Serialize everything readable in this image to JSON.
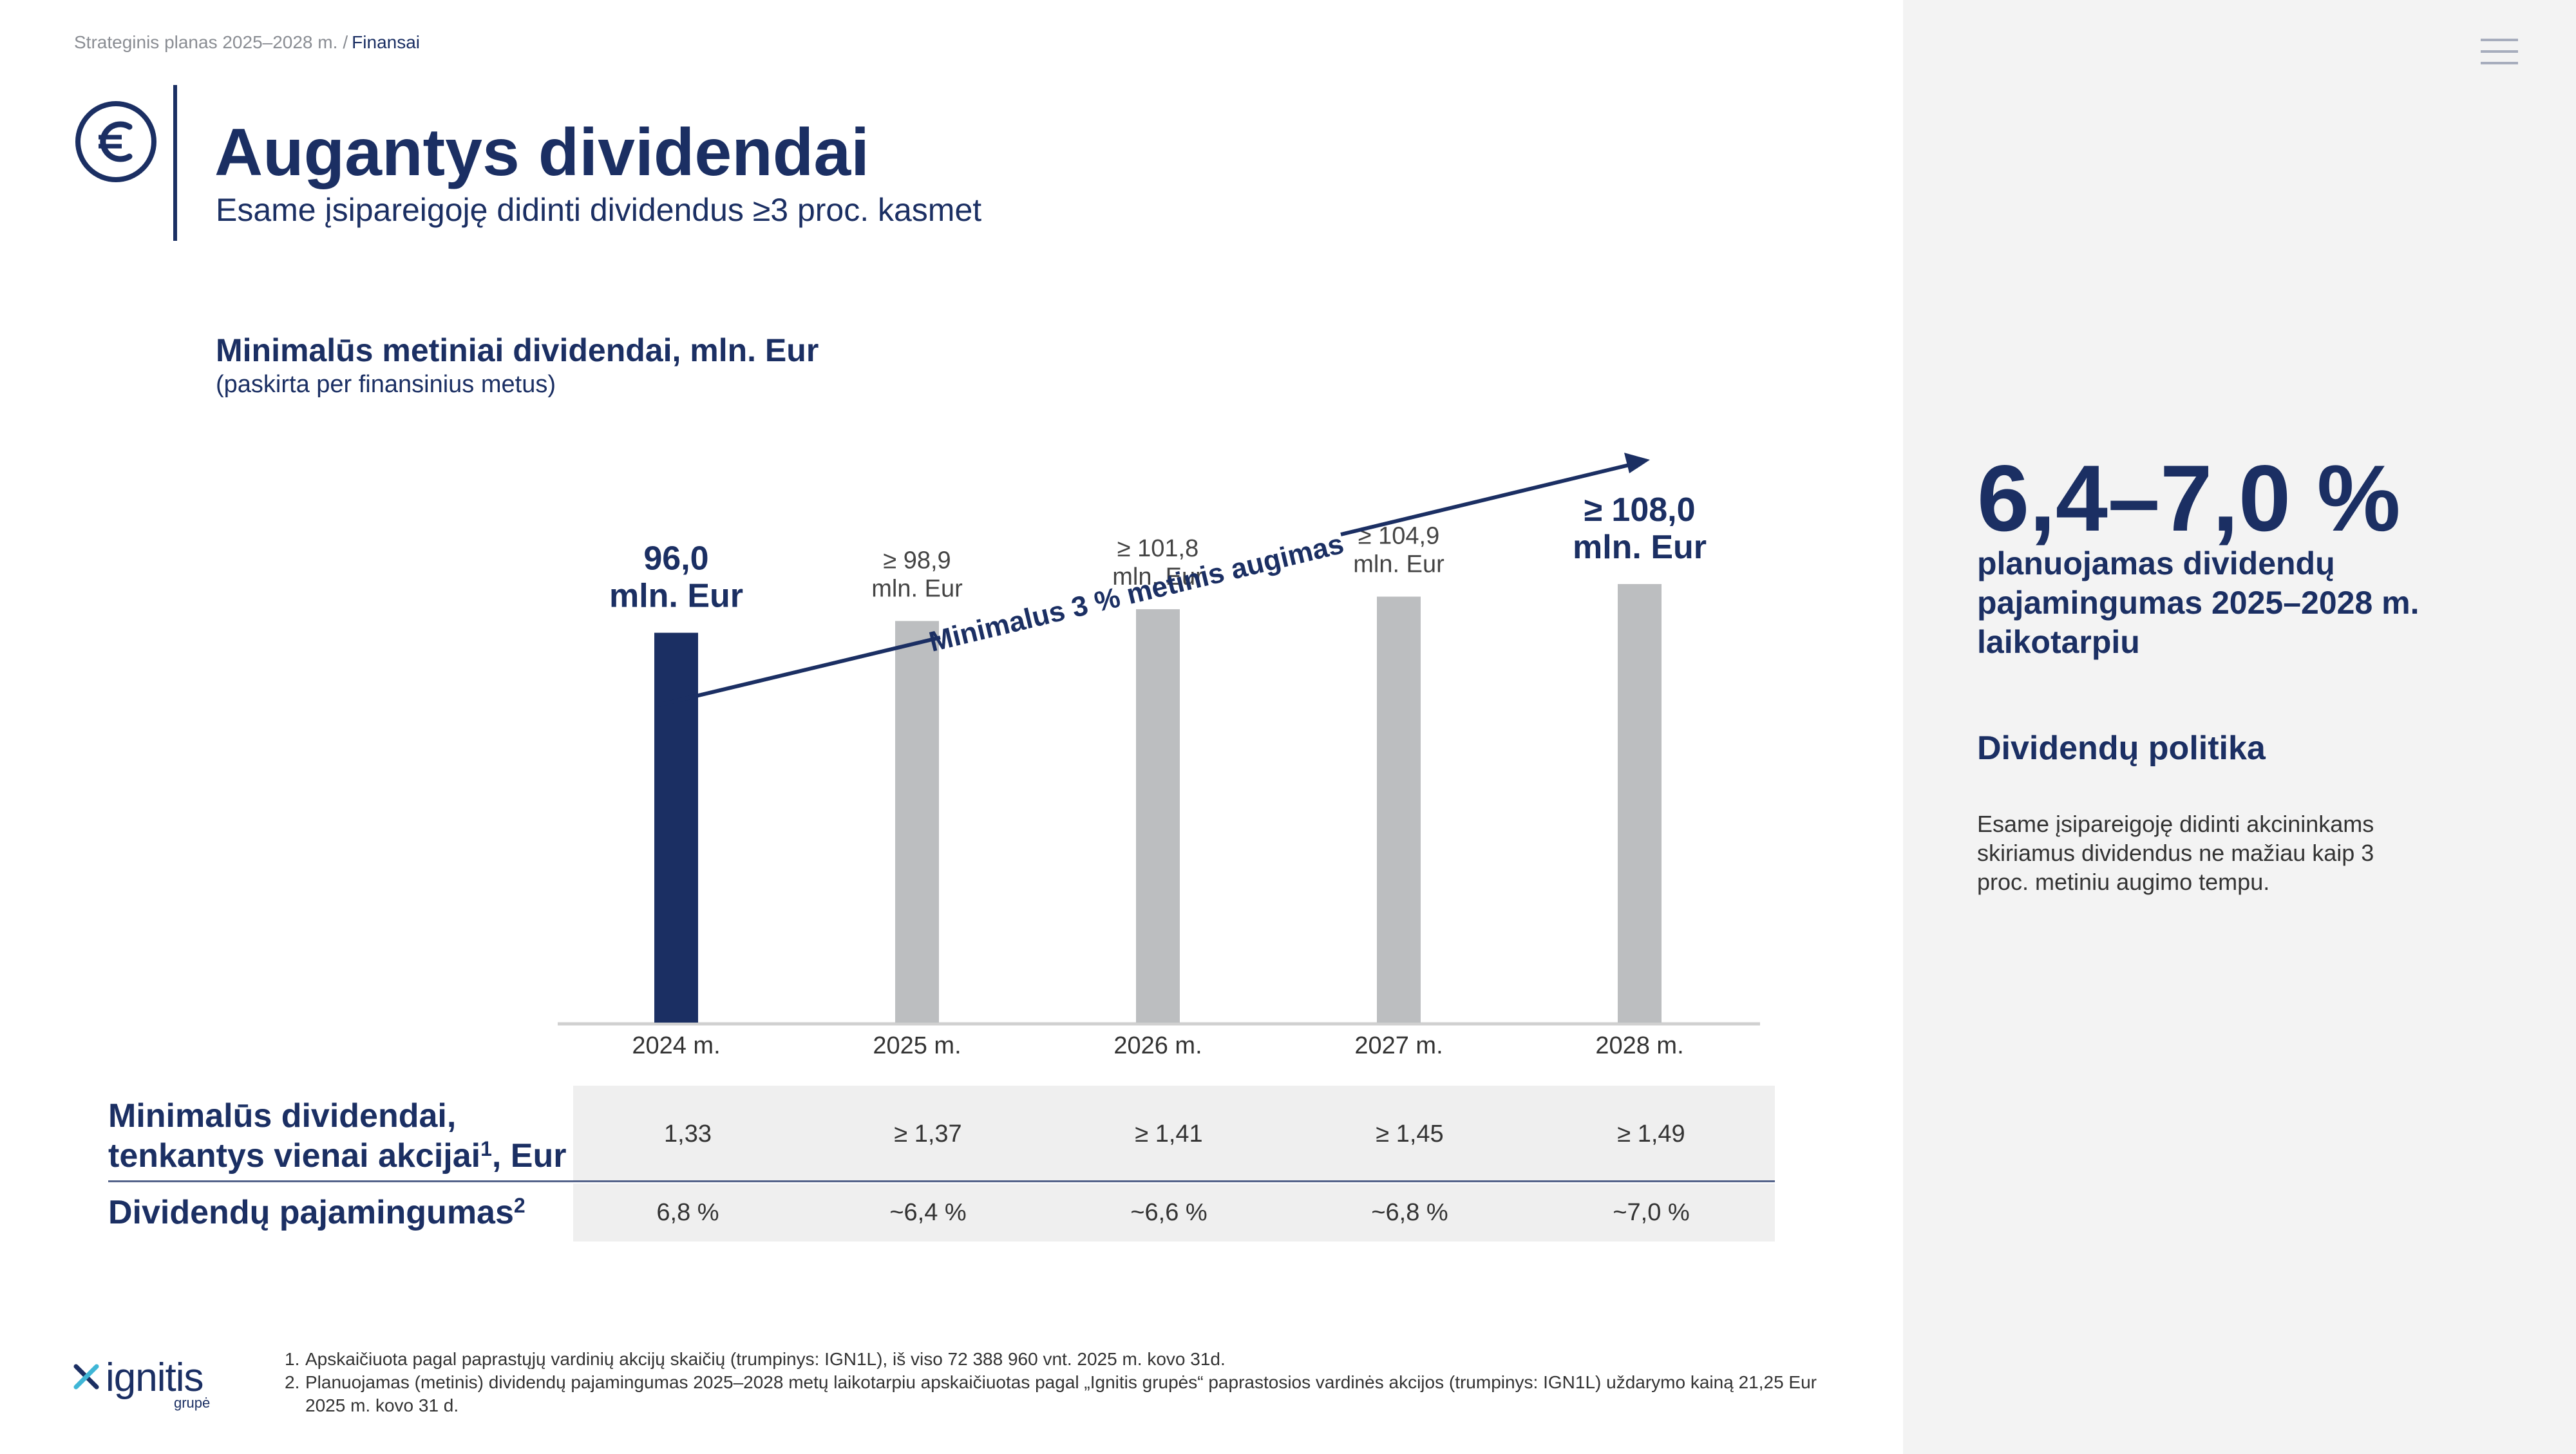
{
  "breadcrumb": {
    "parent": "Strateginis planas 2025–2028 m.",
    "separator": "/",
    "current": "Finansai"
  },
  "header": {
    "title": "Augantys dividendai",
    "subtitle": "Esame įsipareigoję didinti dividendus ≥3 proc. kasmet"
  },
  "chart_heading": {
    "title": "Minimalūs metiniai dividendai, mln. Eur",
    "subtitle": "(paskirta per finansinius metus)"
  },
  "chart_data": {
    "type": "bar",
    "categories": [
      "2024 m.",
      "2025 m.",
      "2026 m.",
      "2027 m.",
      "2028 m."
    ],
    "values": [
      96.0,
      98.9,
      101.8,
      104.9,
      108.0
    ],
    "value_labels": [
      [
        "96,0",
        "mln. Eur"
      ],
      [
        "≥ 98,9",
        "mln. Eur"
      ],
      [
        "≥ 101,8",
        "mln. Eur"
      ],
      [
        "≥ 104,9",
        "mln. Eur"
      ],
      [
        "≥ 108,0",
        "mln. Eur"
      ]
    ],
    "highlight_index": 0,
    "colors": {
      "highlight": "#1b2f63",
      "default": "#bcbec0",
      "axis": "#d0d0d0"
    },
    "annotation": "Minimalus 3 % metinis augimas",
    "title": "Minimalūs metiniai dividendai, mln. Eur"
  },
  "table": {
    "rows": [
      {
        "label_line1": "Minimalūs dividendai,",
        "label_line2": "tenkantys vienai akcijai",
        "label_sup": "1",
        "label_tail": ", Eur",
        "values": [
          "1,33",
          "≥ 1,37",
          "≥ 1,41",
          "≥ 1,45",
          "≥ 1,49"
        ]
      },
      {
        "label": "Dividendų pajamingumas",
        "label_sup": "2",
        "values": [
          "6,8 %",
          "~6,4 %",
          "~6,6 %",
          "~6,8 %",
          "~7,0 %"
        ]
      }
    ]
  },
  "side": {
    "big_number": "6,4–7,0 %",
    "big_desc": "planuojamas dividendų pajamingumas 2025–2028 m. laikotarpiu",
    "policy_heading": "Dividendų politika",
    "policy_text": "Esame įsipareigoję didinti akcininkams skiriamus dividendus ne mažiau kaip 3 proc. metiniu augimo tempu."
  },
  "logo": {
    "word": "ignitis",
    "sub": "grupė"
  },
  "footnotes": [
    {
      "num": "1.",
      "text": "Apskaičiuota pagal paprastųjų vardinių akcijų skaičių (trumpinys: IGN1L), iš viso 72 388 960 vnt. 2025 m. kovo 31d."
    },
    {
      "num": "2.",
      "text": "Planuojamas (metinis) dividendų pajamingumas 2025–2028 metų laikotarpiu apskaičiuotas pagal „Ignitis grupės“ paprastosios vardinės akcijos (trumpinys: IGN1L) uždarymo kainą 21,25 Eur 2025 m. kovo 31 d."
    }
  ],
  "icons": {
    "title_icon": "euro-icon",
    "menu": "hamburger-menu-icon",
    "logo": "ignitis-logo-icon"
  }
}
